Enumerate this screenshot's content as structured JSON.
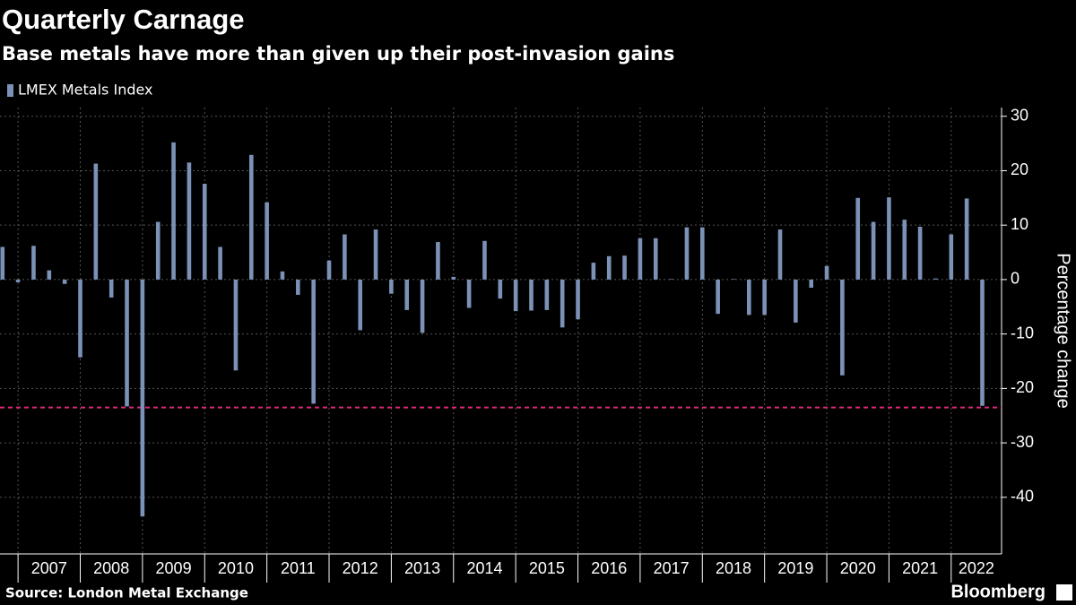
{
  "chart_data": {
    "type": "bar",
    "title": "Quarterly Carnage",
    "subtitle": "Base metals have more than given up their post-invasion gains",
    "y_label": "Percentage change",
    "source": "Source: London Metal Exchange",
    "brand": "Bloomberg",
    "x": [
      2006.75,
      2007,
      2007.25,
      2007.5,
      2007.75,
      2008,
      2008.25,
      2008.5,
      2008.75,
      2009,
      2009.25,
      2009.5,
      2009.75,
      2010,
      2010.25,
      2010.5,
      2010.75,
      2011,
      2011.25,
      2011.5,
      2011.75,
      2012,
      2012.25,
      2012.5,
      2012.75,
      2013,
      2013.25,
      2013.5,
      2013.75,
      2014,
      2014.25,
      2014.5,
      2014.75,
      2015,
      2015.25,
      2015.5,
      2015.75,
      2016,
      2016.25,
      2016.5,
      2016.75,
      2017,
      2017.25,
      2017.5,
      2017.75,
      2018,
      2018.25,
      2018.5,
      2018.75,
      2019,
      2019.25,
      2019.5,
      2019.75,
      2020,
      2020.25,
      2020.5,
      2020.75,
      2021,
      2021.25,
      2021.5,
      2021.75,
      2022,
      2022.25,
      2022.5
    ],
    "series": [
      {
        "name": "LMEX Metals Index",
        "color": "#7b91b6",
        "values": [
          6,
          -0.5,
          6.2,
          1.7,
          -0.8,
          -14.3,
          21.3,
          -3.3,
          -23.3,
          -43.5,
          10.6,
          25.2,
          21.5,
          17.6,
          6,
          -16.7,
          22.9,
          14.2,
          1.5,
          -2.8,
          -22.8,
          3.5,
          8.3,
          -9.3,
          9.2,
          -2.6,
          -5.6,
          -9.8,
          6.9,
          0.5,
          -5.2,
          7.1,
          -3.5,
          -5.8,
          -5.7,
          -5.6,
          -8.8,
          -7.3,
          3.1,
          4.3,
          4.4,
          7.6,
          7.6,
          0.1,
          9.6,
          9.6,
          -6.3,
          0.1,
          -6.5,
          -6.5,
          9.2,
          -7.9,
          -1.5,
          2.5,
          -17.6,
          15,
          10.6,
          15.1,
          11,
          9.7,
          0.2,
          8.3,
          14.9,
          -23.2
        ]
      }
    ],
    "xlim": [
      2006.71,
      2022.81
    ],
    "xticks": [
      2007,
      2008,
      2009,
      2010,
      2011,
      2012,
      2013,
      2014,
      2015,
      2016,
      2017,
      2018,
      2019,
      2020,
      2021,
      2022
    ],
    "ylim": [
      -50.4,
      31.6
    ],
    "yticks": [
      -40,
      -30,
      -20,
      -10,
      0,
      10,
      20,
      30
    ],
    "ref_line": -23.5,
    "ref_color": "#e0267d",
    "grid": true
  }
}
